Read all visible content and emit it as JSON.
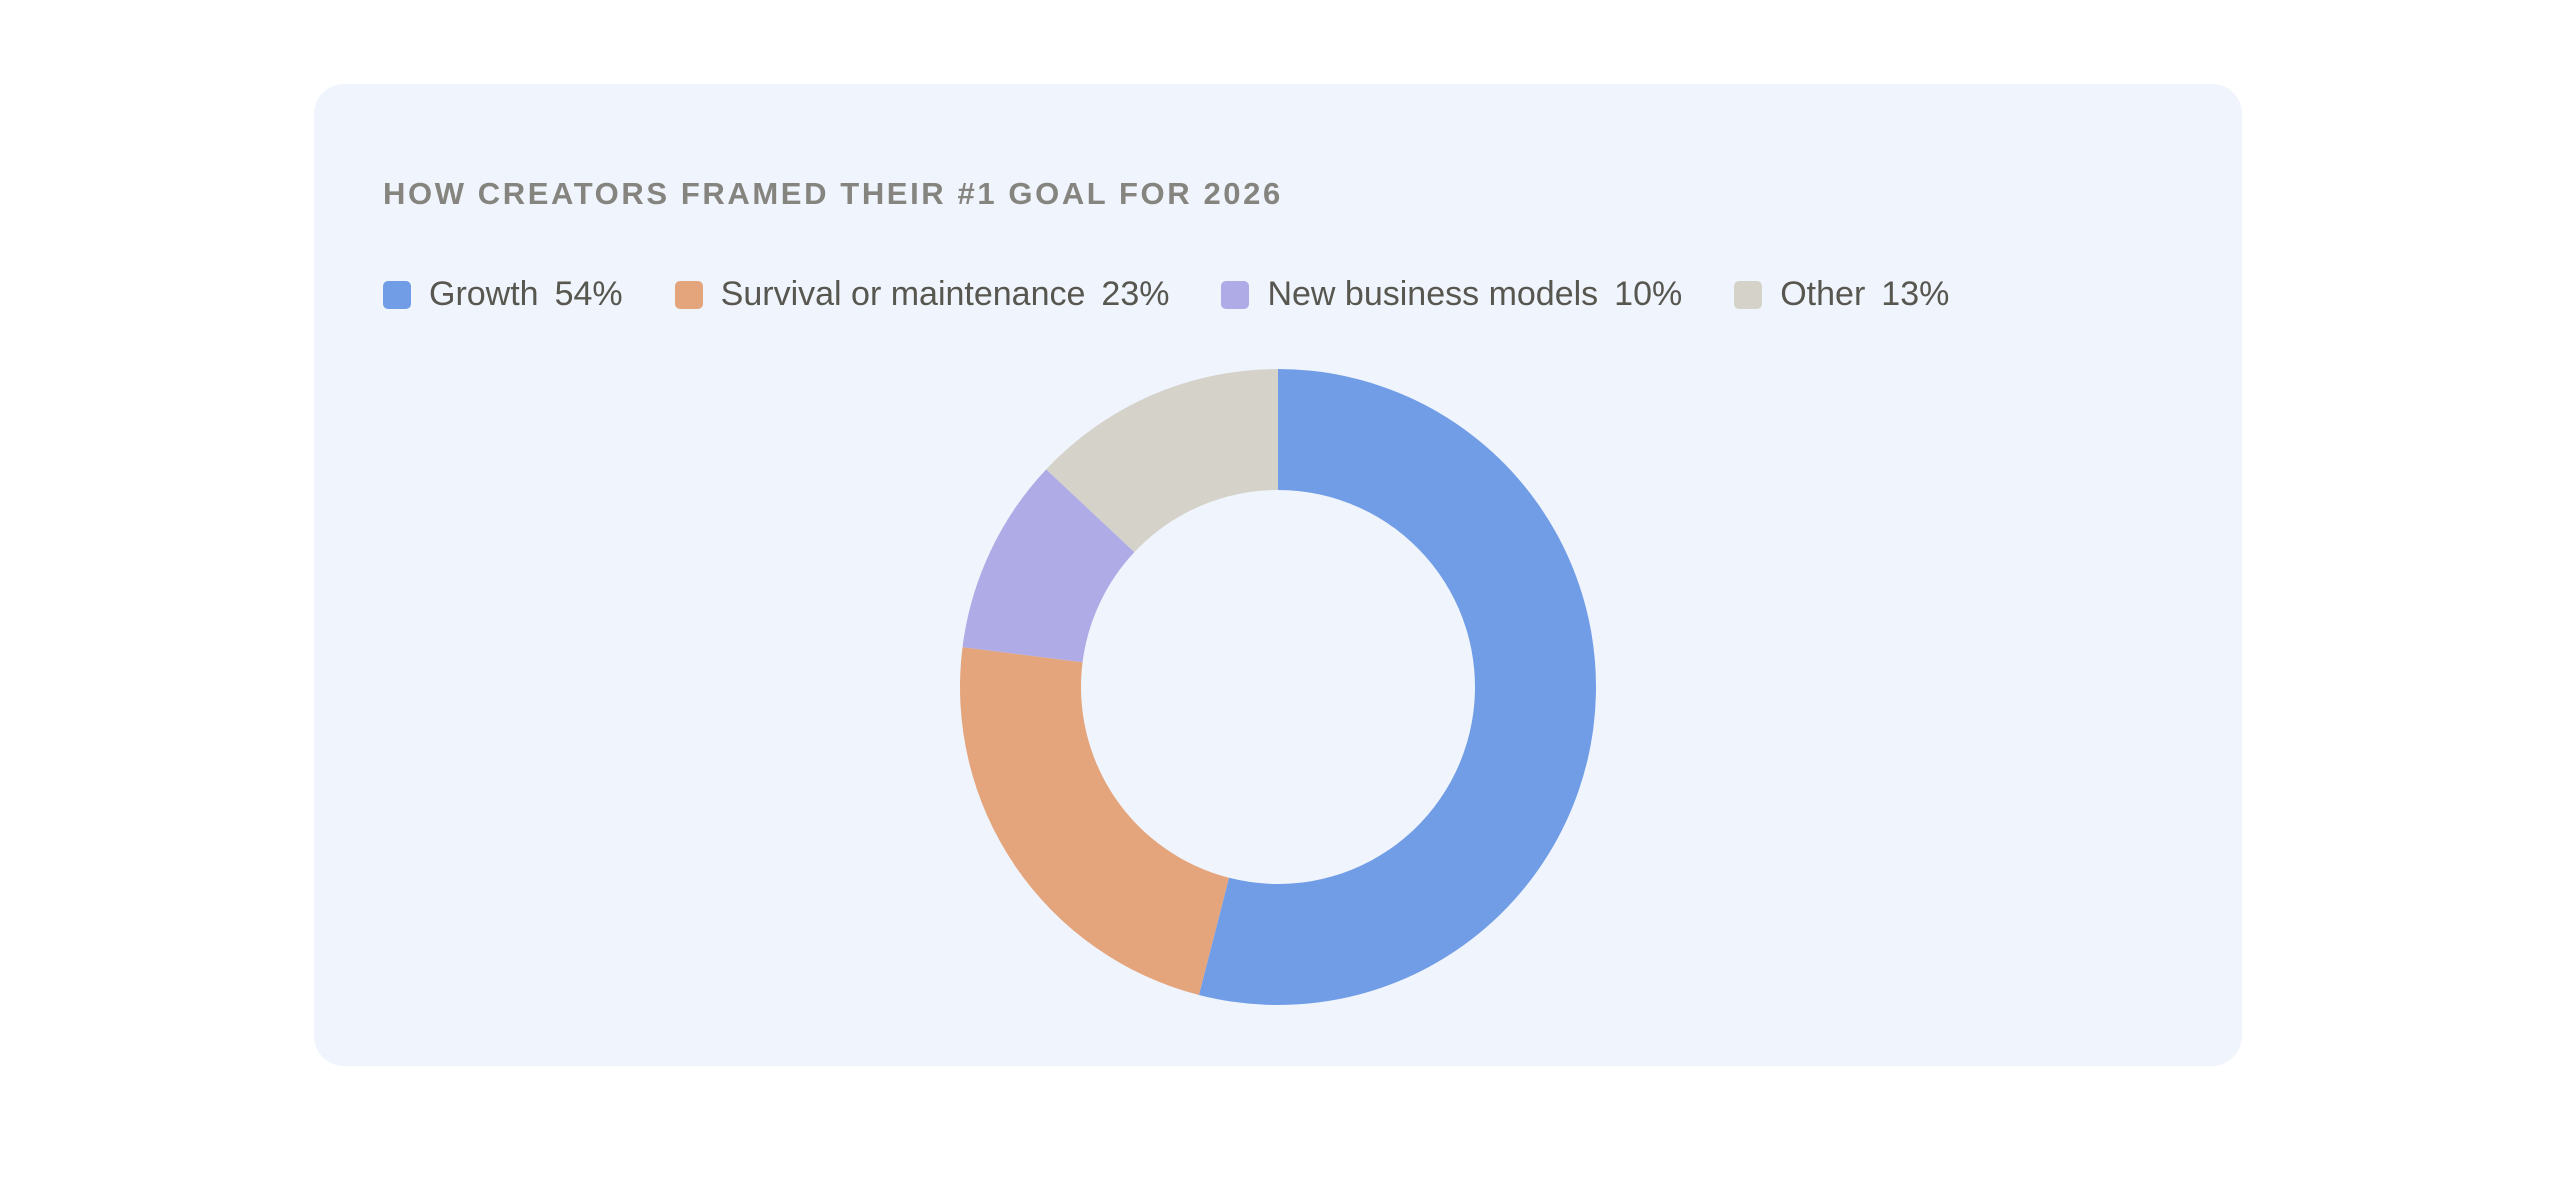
{
  "card": {
    "title": "HOW CREATORS FRAMED THEIR #1 GOAL FOR 2026"
  },
  "legend": [
    {
      "label": "Growth",
      "value": "54%",
      "color": "#719de6"
    },
    {
      "label": "Survival or maintenance",
      "value": "23%",
      "color": "#e4a57c"
    },
    {
      "label": "New business models",
      "value": "10%",
      "color": "#aeabe7"
    },
    {
      "label": "Other",
      "value": "13%",
      "color": "#d5d2ca"
    }
  ],
  "chart_data": {
    "type": "pie",
    "variant": "donut",
    "title": "HOW CREATORS FRAMED THEIR #1 GOAL FOR 2026",
    "categories": [
      "Growth",
      "Survival or maintenance",
      "New business models",
      "Other"
    ],
    "values": [
      54,
      23,
      10,
      13
    ],
    "unit": "%",
    "colors": [
      "#719de6",
      "#e4a57c",
      "#aeabe7",
      "#d5d2ca"
    ],
    "start_angle": "12 o'clock, clockwise",
    "legend_position": "top",
    "inner_radius_ratio": 0.62
  }
}
